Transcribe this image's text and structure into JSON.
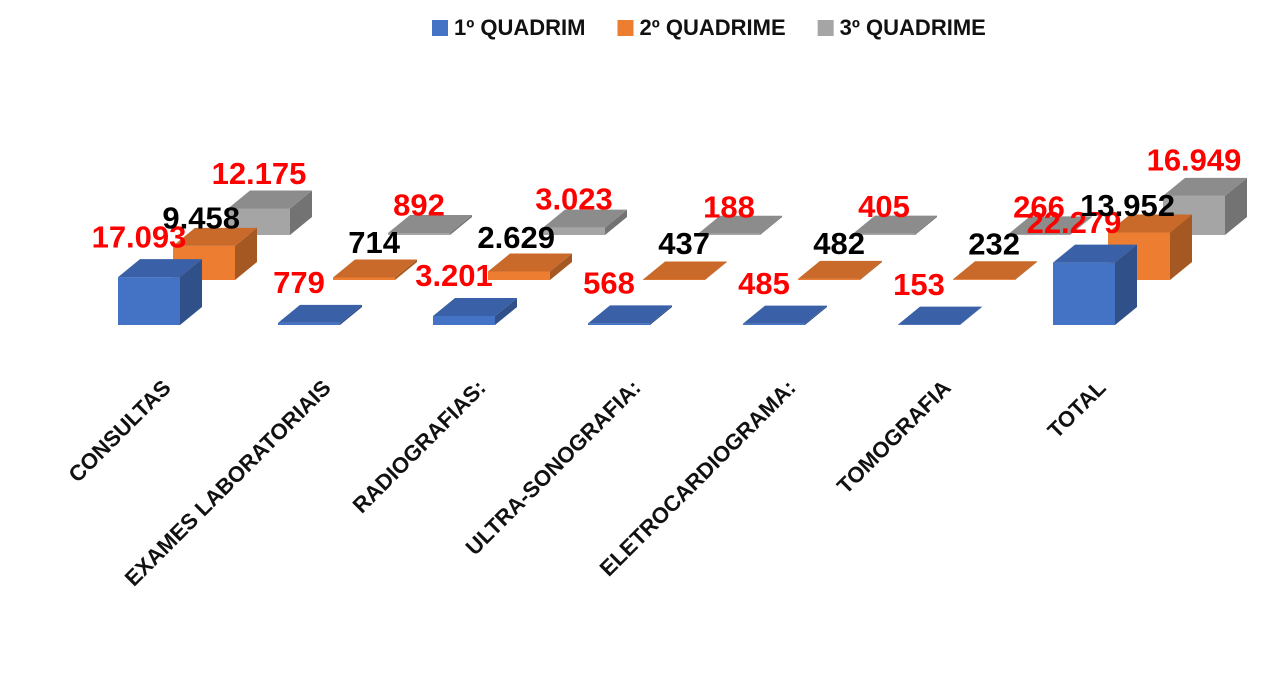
{
  "chart_data": {
    "type": "bar3d",
    "categories": [
      "CONSULTAS",
      "EXAMES LABORATORIAIS",
      "RADIOGRAFIAS:",
      "ULTRA-SONOGRAFIA:",
      "ELETROCARDIOGRAMA:",
      "TOMOGRAFIA",
      "TOTAL"
    ],
    "series": [
      {
        "name": "1º QUADRIM",
        "color": "#4472c4",
        "label_color": "#ff0000",
        "values": [
          17093,
          779,
          3201,
          568,
          485,
          153,
          22279
        ],
        "value_labels": [
          "17.093",
          "779",
          "3.201",
          "568",
          "485",
          "153",
          "22.279"
        ]
      },
      {
        "name": "2º QUADRIME",
        "color": "#ed7d31",
        "label_color": "#ff0000",
        "values": [
          12175,
          892,
          3023,
          188,
          405,
          266,
          16949
        ],
        "value_labels": [
          "12.175",
          "892",
          "3.023",
          "188",
          "405",
          "266",
          "16.949"
        ]
      },
      {
        "name": "3º QUADRIME",
        "color": "#a5a5a5",
        "label_color": "#000000",
        "values": [
          9458,
          714,
          2629,
          437,
          482,
          232,
          13952
        ],
        "value_labels": [
          "9.458",
          "714",
          "2.629",
          "437",
          "482",
          "232",
          "13.952"
        ]
      }
    ]
  }
}
